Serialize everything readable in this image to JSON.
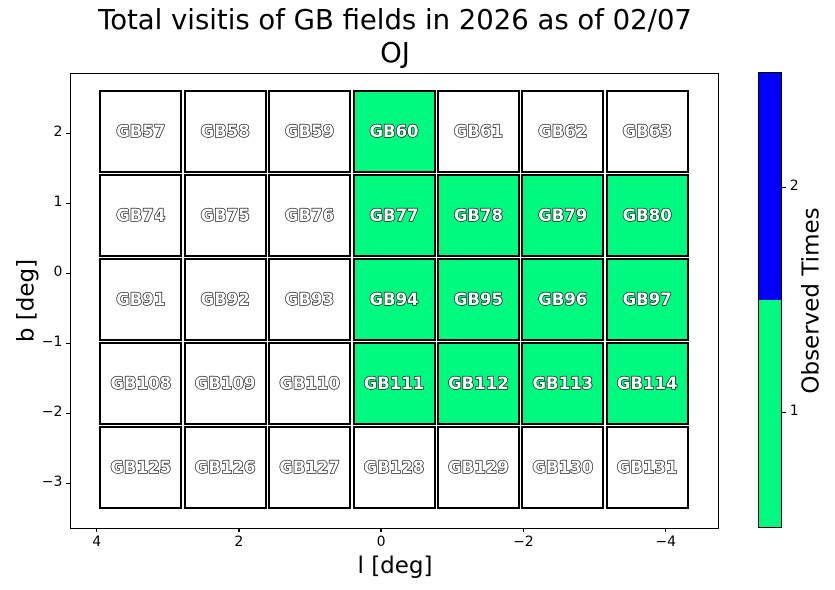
{
  "title": {
    "line1": "Total visitis of GB fields in 2026 as of 02/07",
    "line2": "OJ"
  },
  "chart_data": {
    "type": "heatmap",
    "title": "Total visitis of GB fields in 2026 as of 02/07",
    "subtitle": "OJ",
    "xlabel": "l [deg]",
    "ylabel": "b [deg]",
    "x_tick_labels": [
      "4",
      "2",
      "0",
      "−2",
      "−4"
    ],
    "y_tick_labels": [
      "2",
      "1",
      "0",
      "−1",
      "−2",
      "−3"
    ],
    "x_range": [
      4.4,
      -4.4
    ],
    "y_range": [
      2.6,
      -3.4
    ],
    "grid": false,
    "legend_position": "right-colorbar",
    "colorbar": {
      "label": "Observed Times",
      "range": [
        0.5,
        2.5
      ],
      "tick_labels": [
        "2",
        "1"
      ],
      "segments": [
        {
          "value": 2,
          "color": "#0000FF"
        },
        {
          "value": 1,
          "color": "#00FA7F"
        }
      ]
    },
    "observed_color": "#00FA7F",
    "unobserved_color": "#FFFFFF",
    "rows": [
      {
        "fields": [
          {
            "name": "GB57",
            "observed": 0
          },
          {
            "name": "GB58",
            "observed": 0
          },
          {
            "name": "GB59",
            "observed": 0
          },
          {
            "name": "GB60",
            "observed": 1
          },
          {
            "name": "GB61",
            "observed": 0
          },
          {
            "name": "GB62",
            "observed": 0
          },
          {
            "name": "GB63",
            "observed": 0
          }
        ]
      },
      {
        "fields": [
          {
            "name": "GB74",
            "observed": 0
          },
          {
            "name": "GB75",
            "observed": 0
          },
          {
            "name": "GB76",
            "observed": 0
          },
          {
            "name": "GB77",
            "observed": 1
          },
          {
            "name": "GB78",
            "observed": 1
          },
          {
            "name": "GB79",
            "observed": 1
          },
          {
            "name": "GB80",
            "observed": 1
          }
        ]
      },
      {
        "fields": [
          {
            "name": "GB91",
            "observed": 0
          },
          {
            "name": "GB92",
            "observed": 0
          },
          {
            "name": "GB93",
            "observed": 0
          },
          {
            "name": "GB94",
            "observed": 1
          },
          {
            "name": "GB95",
            "observed": 1
          },
          {
            "name": "GB96",
            "observed": 1
          },
          {
            "name": "GB97",
            "observed": 1
          }
        ]
      },
      {
        "fields": [
          {
            "name": "GB108",
            "observed": 0
          },
          {
            "name": "GB109",
            "observed": 0
          },
          {
            "name": "GB110",
            "observed": 0
          },
          {
            "name": "GB111",
            "observed": 1
          },
          {
            "name": "GB112",
            "observed": 1
          },
          {
            "name": "GB113",
            "observed": 1
          },
          {
            "name": "GB114",
            "observed": 1
          }
        ]
      },
      {
        "fields": [
          {
            "name": "GB125",
            "observed": 0
          },
          {
            "name": "GB126",
            "observed": 0
          },
          {
            "name": "GB127",
            "observed": 0
          },
          {
            "name": "GB128",
            "observed": 0
          },
          {
            "name": "GB129",
            "observed": 0
          },
          {
            "name": "GB130",
            "observed": 0
          },
          {
            "name": "GB131",
            "observed": 0
          }
        ]
      }
    ]
  }
}
